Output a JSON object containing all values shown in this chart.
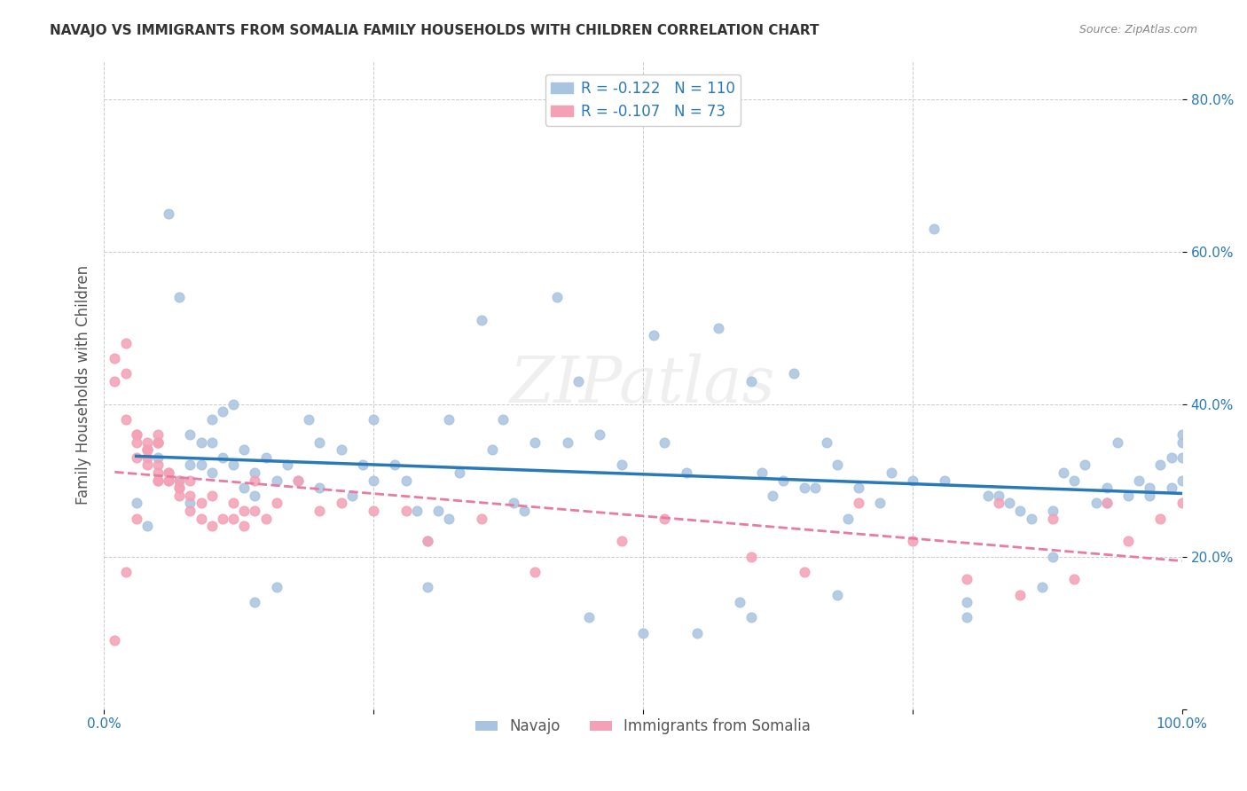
{
  "title": "NAVAJO VS IMMIGRANTS FROM SOMALIA FAMILY HOUSEHOLDS WITH CHILDREN CORRELATION CHART",
  "source": "Source: ZipAtlas.com",
  "xlabel": "",
  "ylabel": "Family Households with Children",
  "xlim": [
    0.0,
    1.0
  ],
  "ylim": [
    0.0,
    0.85
  ],
  "xticks": [
    0.0,
    0.25,
    0.5,
    0.75,
    1.0
  ],
  "xtick_labels": [
    "0.0%",
    "",
    "",
    "",
    "100.0%"
  ],
  "yticks": [
    0.0,
    0.2,
    0.4,
    0.6,
    0.8
  ],
  "ytick_labels": [
    "",
    "20.0%",
    "40.0%",
    "60.0%",
    "80.0%"
  ],
  "navajo_color": "#a8c4e0",
  "somalia_color": "#f4a0b5",
  "navajo_line_color": "#2979b8",
  "somalia_line_color": "#e87b9e",
  "navajo_R": -0.122,
  "navajo_N": 110,
  "somalia_R": -0.107,
  "somalia_N": 73,
  "navajo_scatter_x": [
    0.03,
    0.04,
    0.06,
    0.07,
    0.07,
    0.08,
    0.08,
    0.08,
    0.09,
    0.09,
    0.1,
    0.1,
    0.11,
    0.11,
    0.12,
    0.12,
    0.13,
    0.13,
    0.14,
    0.14,
    0.15,
    0.16,
    0.17,
    0.18,
    0.19,
    0.2,
    0.2,
    0.22,
    0.23,
    0.24,
    0.25,
    0.25,
    0.27,
    0.28,
    0.29,
    0.3,
    0.31,
    0.32,
    0.32,
    0.33,
    0.35,
    0.36,
    0.37,
    0.38,
    0.39,
    0.4,
    0.42,
    0.43,
    0.44,
    0.46,
    0.48,
    0.5,
    0.51,
    0.52,
    0.54,
    0.55,
    0.57,
    0.59,
    0.6,
    0.61,
    0.62,
    0.63,
    0.64,
    0.65,
    0.66,
    0.67,
    0.68,
    0.69,
    0.7,
    0.72,
    0.73,
    0.75,
    0.77,
    0.78,
    0.8,
    0.82,
    0.83,
    0.84,
    0.85,
    0.86,
    0.87,
    0.88,
    0.89,
    0.9,
    0.91,
    0.92,
    0.93,
    0.93,
    0.94,
    0.95,
    0.96,
    0.97,
    0.97,
    0.98,
    0.99,
    0.99,
    1.0,
    1.0,
    1.0,
    1.0,
    0.05,
    0.1,
    0.14,
    0.16,
    0.3,
    0.45,
    0.6,
    0.68,
    0.8,
    0.88
  ],
  "navajo_scatter_y": [
    0.27,
    0.24,
    0.65,
    0.54,
    0.3,
    0.32,
    0.36,
    0.27,
    0.35,
    0.32,
    0.31,
    0.38,
    0.33,
    0.39,
    0.4,
    0.32,
    0.34,
    0.29,
    0.31,
    0.28,
    0.33,
    0.3,
    0.32,
    0.3,
    0.38,
    0.29,
    0.35,
    0.34,
    0.28,
    0.32,
    0.3,
    0.38,
    0.32,
    0.3,
    0.26,
    0.22,
    0.26,
    0.25,
    0.38,
    0.31,
    0.51,
    0.34,
    0.38,
    0.27,
    0.26,
    0.35,
    0.54,
    0.35,
    0.43,
    0.36,
    0.32,
    0.1,
    0.49,
    0.35,
    0.31,
    0.1,
    0.5,
    0.14,
    0.43,
    0.31,
    0.28,
    0.3,
    0.44,
    0.29,
    0.29,
    0.35,
    0.32,
    0.25,
    0.29,
    0.27,
    0.31,
    0.3,
    0.63,
    0.3,
    0.14,
    0.28,
    0.28,
    0.27,
    0.26,
    0.25,
    0.16,
    0.26,
    0.31,
    0.3,
    0.32,
    0.27,
    0.27,
    0.29,
    0.35,
    0.28,
    0.3,
    0.29,
    0.28,
    0.32,
    0.33,
    0.29,
    0.3,
    0.35,
    0.33,
    0.36,
    0.33,
    0.35,
    0.14,
    0.16,
    0.16,
    0.12,
    0.12,
    0.15,
    0.12,
    0.2
  ],
  "somalia_scatter_x": [
    0.01,
    0.01,
    0.02,
    0.02,
    0.02,
    0.03,
    0.03,
    0.03,
    0.03,
    0.04,
    0.04,
    0.04,
    0.04,
    0.04,
    0.05,
    0.05,
    0.05,
    0.05,
    0.05,
    0.05,
    0.05,
    0.06,
    0.06,
    0.06,
    0.06,
    0.07,
    0.07,
    0.07,
    0.07,
    0.08,
    0.08,
    0.08,
    0.09,
    0.09,
    0.1,
    0.1,
    0.11,
    0.12,
    0.12,
    0.13,
    0.13,
    0.14,
    0.14,
    0.15,
    0.16,
    0.18,
    0.2,
    0.22,
    0.25,
    0.28,
    0.3,
    0.35,
    0.4,
    0.48,
    0.52,
    0.6,
    0.65,
    0.7,
    0.75,
    0.8,
    0.83,
    0.85,
    0.88,
    0.9,
    0.93,
    0.95,
    0.98,
    1.0,
    0.01,
    0.02,
    0.03,
    0.04,
    0.05
  ],
  "somalia_scatter_y": [
    0.46,
    0.43,
    0.48,
    0.44,
    0.38,
    0.36,
    0.36,
    0.35,
    0.33,
    0.34,
    0.34,
    0.34,
    0.33,
    0.32,
    0.35,
    0.36,
    0.35,
    0.32,
    0.31,
    0.3,
    0.3,
    0.3,
    0.31,
    0.31,
    0.3,
    0.3,
    0.29,
    0.29,
    0.28,
    0.3,
    0.28,
    0.26,
    0.27,
    0.25,
    0.28,
    0.24,
    0.25,
    0.25,
    0.27,
    0.24,
    0.26,
    0.26,
    0.3,
    0.25,
    0.27,
    0.3,
    0.26,
    0.27,
    0.26,
    0.26,
    0.22,
    0.25,
    0.18,
    0.22,
    0.25,
    0.2,
    0.18,
    0.27,
    0.22,
    0.17,
    0.27,
    0.15,
    0.25,
    0.17,
    0.27,
    0.22,
    0.25,
    0.27,
    0.09,
    0.18,
    0.25,
    0.35,
    0.35
  ],
  "watermark": "ZIPatlas",
  "background_color": "#ffffff",
  "grid_color": "#cccccc"
}
